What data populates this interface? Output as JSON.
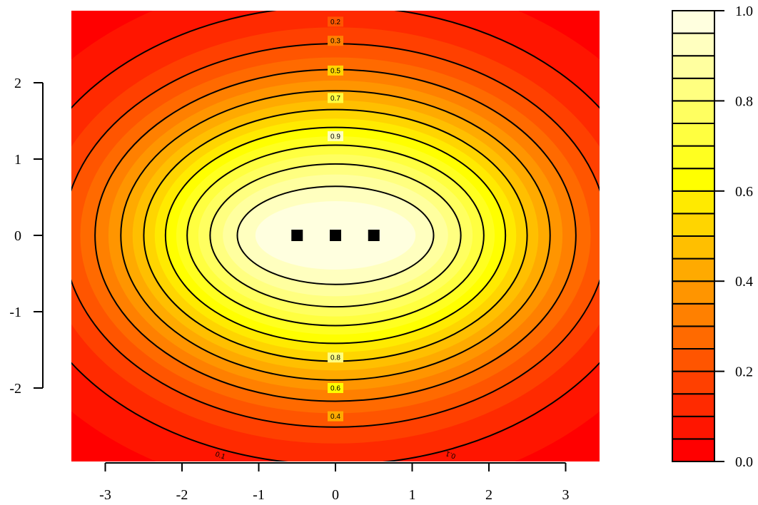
{
  "chart_data": {
    "type": "contour",
    "title": "",
    "xlabel": "",
    "ylabel": "",
    "xlim": [
      -3.45,
      3.45
    ],
    "ylim": [
      -2.95,
      2.95
    ],
    "x_ticks": [
      -3,
      -2,
      -1,
      0,
      1,
      2,
      3
    ],
    "x_tick_labels": [
      "-3",
      "-2",
      "-1",
      "0",
      "1",
      "2",
      "3"
    ],
    "y_ticks": [
      -2,
      -1,
      0,
      1,
      2
    ],
    "y_tick_labels": [
      "-2",
      "-1",
      "0",
      "1",
      "2"
    ],
    "points": [
      {
        "x": -0.5,
        "y": 0
      },
      {
        "x": 0,
        "y": 0
      },
      {
        "x": 0.5,
        "y": 0
      }
    ],
    "contour_levels": [
      0.1,
      0.2,
      0.3,
      0.4,
      0.5,
      0.6,
      0.7,
      0.8,
      0.9
    ],
    "contour_labels": [
      {
        "text": "0.2",
        "x": 0,
        "y": 2.8
      },
      {
        "text": "0.3",
        "x": 0,
        "y": 2.55
      },
      {
        "text": "0.5",
        "x": 0,
        "y": 2.16
      },
      {
        "text": "0.7",
        "x": 0,
        "y": 1.8
      },
      {
        "text": "0.9",
        "x": 0,
        "y": 1.3
      },
      {
        "text": "0.8",
        "x": 0,
        "y": -1.6
      },
      {
        "text": "0.6",
        "x": 0,
        "y": -2.0
      },
      {
        "text": "0.4",
        "x": 0,
        "y": -2.37
      },
      {
        "text": "0.1",
        "x": -1.5,
        "y": -2.88,
        "rotate": 20
      },
      {
        "text": "0.1",
        "x": 1.5,
        "y": -2.88,
        "rotate": -160
      }
    ],
    "colorbar": {
      "range": [
        0,
        1
      ],
      "n_bands": 20,
      "ticks": [
        0.0,
        0.2,
        0.4,
        0.6,
        0.8,
        1.0
      ],
      "tick_labels": [
        "0.0",
        "0.2",
        "0.4",
        "0.6",
        "0.8",
        "1.0"
      ],
      "colors": [
        "#ff0000",
        "#ff1500",
        "#ff2a00",
        "#ff4000",
        "#ff5500",
        "#ff6a00",
        "#ff8000",
        "#ff9500",
        "#ffaa00",
        "#ffbf00",
        "#ffd500",
        "#ffea00",
        "#ffff00",
        "#ffff20",
        "#ffff40",
        "#ffff60",
        "#ffff80",
        "#ffff9f",
        "#ffffbf",
        "#ffffdf"
      ]
    },
    "legend": "none",
    "grid": false
  }
}
